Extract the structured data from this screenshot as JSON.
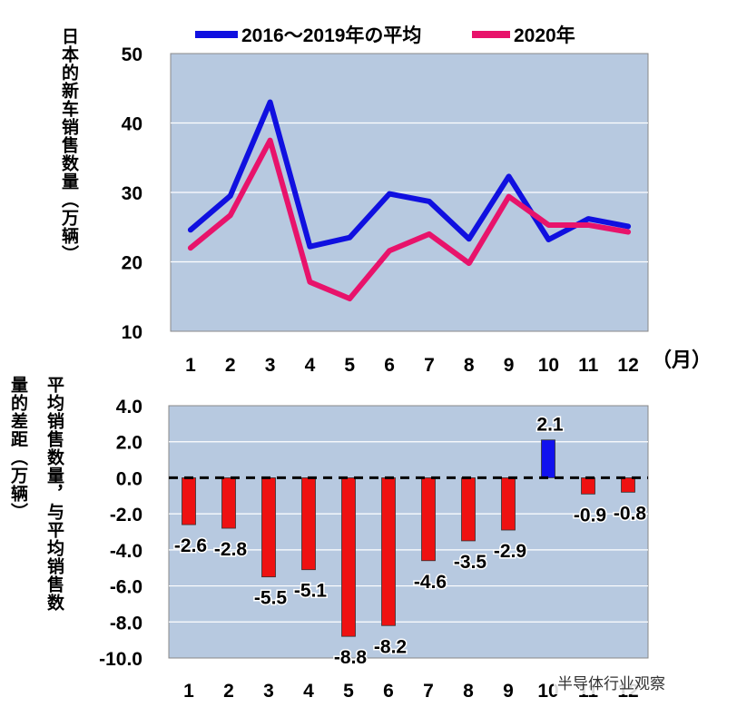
{
  "chart_data": [
    {
      "type": "line",
      "ylabel": "日本的新车销售数量（万辆）",
      "xlabel": "",
      "x_unit_label": "（月）",
      "categories": [
        "1",
        "2",
        "3",
        "4",
        "5",
        "6",
        "7",
        "8",
        "9",
        "10",
        "11",
        "12"
      ],
      "ylim": [
        10,
        50
      ],
      "yticks": [
        10,
        20,
        30,
        40,
        50
      ],
      "grid": true,
      "legend": "top",
      "series": [
        {
          "name": "2016～2019年の平均",
          "color": "#1010e0",
          "values": [
            24.6,
            29.5,
            43.0,
            22.2,
            23.5,
            29.8,
            28.7,
            23.3,
            32.3,
            23.2,
            26.2,
            25.1
          ]
        },
        {
          "name": "2020年",
          "color": "#e8136b",
          "values": [
            22.0,
            26.7,
            37.5,
            17.1,
            14.7,
            21.6,
            24.0,
            19.8,
            29.4,
            25.3,
            25.3,
            24.3
          ]
        }
      ]
    },
    {
      "type": "bar",
      "ylabel_line1": "量的差距（万辆）",
      "ylabel_line2": "平均销售数量，与平均销售数",
      "categories": [
        "1",
        "2",
        "3",
        "4",
        "5",
        "6",
        "7",
        "8",
        "9",
        "10",
        "11",
        "12"
      ],
      "values": [
        -2.6,
        -2.8,
        -5.5,
        -5.1,
        -8.8,
        -8.2,
        -4.6,
        -3.5,
        -2.9,
        2.1,
        -0.9,
        -0.8
      ],
      "labels": [
        "-2.6",
        "-2.8",
        "-5.5",
        "-5.1",
        "-8.8",
        "-8.2",
        "-4.6",
        "-3.5",
        "-2.9",
        "2.1",
        "-0.9",
        "-0.8"
      ],
      "ylim": [
        -10.0,
        4.0
      ],
      "yticks": [
        "-10.0",
        "-8.0",
        "-6.0",
        "-4.0",
        "-2.0",
        "0.0",
        "2.0",
        "4.0"
      ],
      "ytick_values": [
        -10,
        -8,
        -6,
        -4,
        -2,
        0,
        2,
        4
      ],
      "negative_color": "#ee1111",
      "positive_color": "#1111ee",
      "zero_line": "dashed",
      "grid": true
    }
  ],
  "watermark": "半导体行业观察"
}
